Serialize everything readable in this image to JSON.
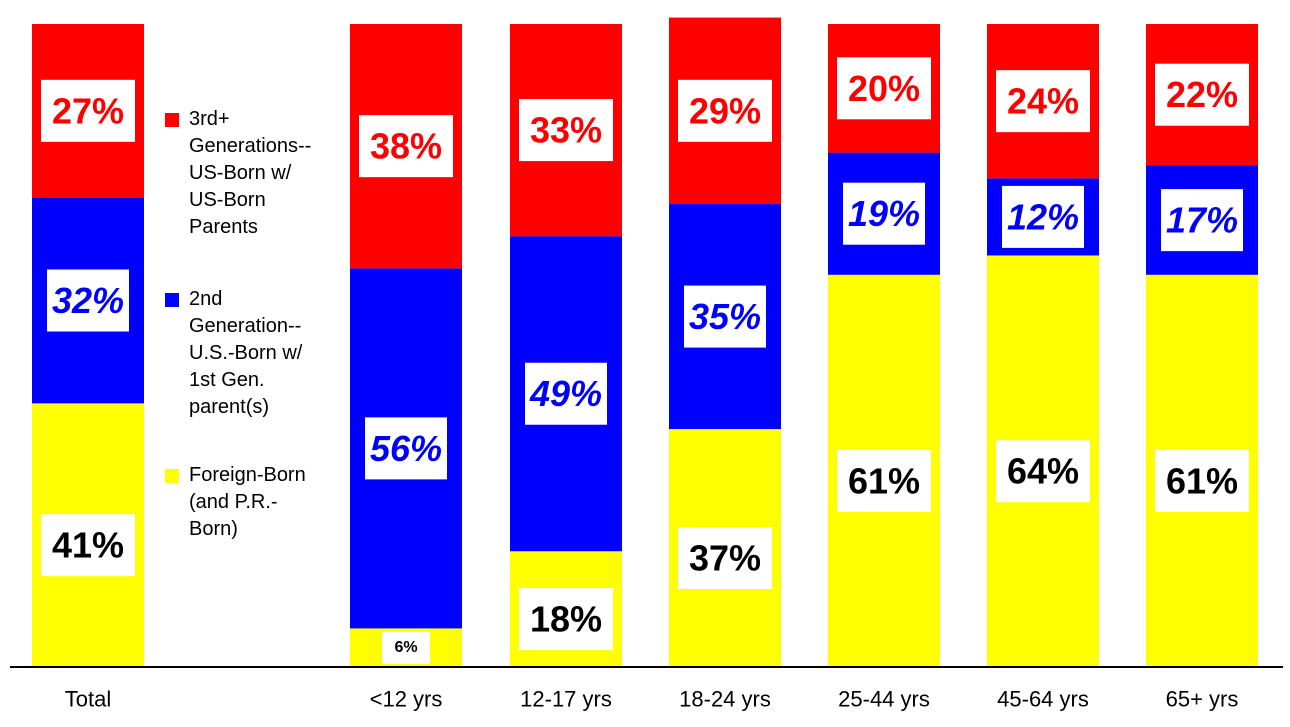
{
  "chart_data": {
    "type": "bar",
    "stacked": true,
    "categories": [
      "Total",
      "<12 yrs",
      "12-17 yrs",
      "18-24 yrs",
      "25-44 yrs",
      "45-64 yrs",
      "65+ yrs"
    ],
    "series": [
      {
        "name": "Foreign-Born (and P.R.-Born)",
        "color": "#ffff00",
        "label_color": "#000000",
        "values": [
          41,
          6,
          18,
          37,
          61,
          64,
          61
        ],
        "labels": [
          "41%",
          "6%",
          "18%",
          "37%",
          "61%",
          "64%",
          "61%"
        ]
      },
      {
        "name": "2nd Generation--U.S.-Born w/ 1st Gen. parent(s)",
        "color": "#0000ff",
        "label_color": "#0000ff",
        "values": [
          32,
          56,
          49,
          35,
          19,
          12,
          17
        ],
        "labels": [
          "32%",
          "56%",
          "49%",
          "35%",
          "19%",
          "12%",
          "17%"
        ]
      },
      {
        "name": "3rd+ Generations--US-Born w/ US-Born Parents",
        "color": "#ff0000",
        "label_color": "#ff0000",
        "values": [
          27,
          38,
          33,
          29,
          20,
          24,
          22
        ],
        "labels": [
          "27%",
          "38%",
          "33%",
          "29%",
          "20%",
          "24%",
          "22%"
        ]
      }
    ],
    "ylim": [
      0,
      100
    ],
    "grid": false,
    "legend_position": "left-center"
  },
  "legend": {
    "items": [
      {
        "label": "3rd+\nGenerations--\nUS-Born w/\nUS-Born\nParents",
        "color": "#ff0000"
      },
      {
        "label": "2nd\nGeneration--\nU.S.-Born w/\n1st Gen.\nparent(s)",
        "color": "#0000ff"
      },
      {
        "label": "Foreign-Born\n(and P.R.-\nBorn)",
        "color": "#ffff00"
      }
    ]
  }
}
